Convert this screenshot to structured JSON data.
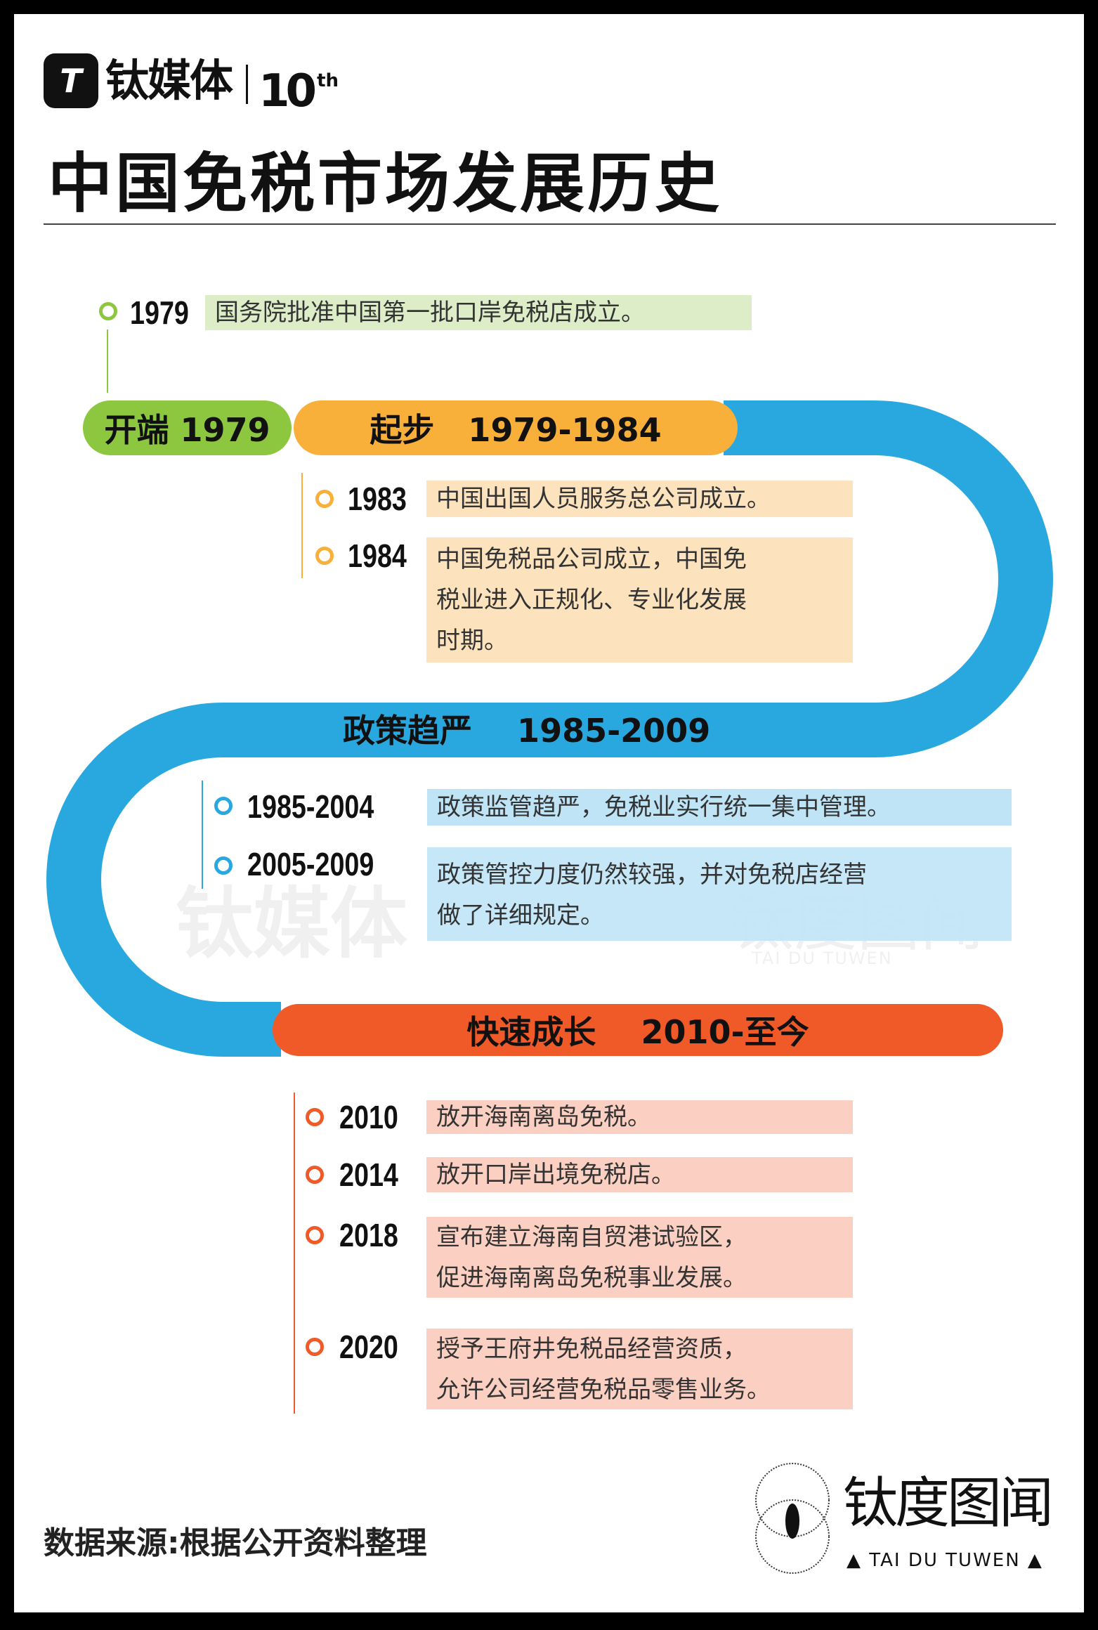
{
  "header": {
    "logo_mark": "T",
    "logo_name": "钛媒体",
    "logo_anniversary": "10",
    "logo_anniversary_suffix": "th",
    "title": "中国免税市场发展历史"
  },
  "colors": {
    "start": "#8dc63f",
    "start_bg": "#dcedc8",
    "step": "#f9b03a",
    "step_bg": "#fde3bd",
    "policy": "#29a8e0",
    "policy_bg": "#bfe4f6",
    "growth": "#f05a28",
    "growth_bg": "#fbd0c2"
  },
  "start": {
    "event": {
      "year": "1979",
      "text": "国务院批准中国第一批口岸免税店成立。"
    },
    "pill_label": "开端 1979"
  },
  "phases": [
    {
      "label": "起步   1979-1984",
      "events": [
        {
          "year": "1983",
          "lines": [
            "中国出国人员服务总公司成立。"
          ]
        },
        {
          "year": "1984",
          "lines": [
            "中国免税品公司成立，中国免",
            "税业进入正规化、专业化发展",
            "时期。"
          ]
        }
      ]
    },
    {
      "label": "政策趋严    1985-2009",
      "events": [
        {
          "year": "1985-2004",
          "lines": [
            "政策监管趋严，免税业实行统一集中管理。"
          ]
        },
        {
          "year": "2005-2009",
          "lines": [
            "政策管控力度仍然较强，并对免税店经营",
            "做了详细规定。"
          ]
        }
      ]
    },
    {
      "label": "快速成长    2010-至今",
      "events": [
        {
          "year": "2010",
          "lines": [
            "放开海南离岛免税。"
          ]
        },
        {
          "year": "2014",
          "lines": [
            "放开口岸出境免税店。"
          ]
        },
        {
          "year": "2018",
          "lines": [
            "宣布建立海南自贸港试验区，",
            "促进海南离岛免税事业发展。"
          ]
        },
        {
          "year": "2020",
          "lines": [
            "授予王府井免税品经营资质，",
            "允许公司经营免税品零售业务。"
          ]
        }
      ]
    }
  ],
  "watermark": {
    "name": "钛媒体",
    "brand": "钛度图闻",
    "brand_en": "TAI DU TUWEN"
  },
  "footer": {
    "source": "数据来源:根据公开资料整理",
    "brand_cn": "钛度图闻",
    "brand_en": "TAI DU TUWEN"
  }
}
